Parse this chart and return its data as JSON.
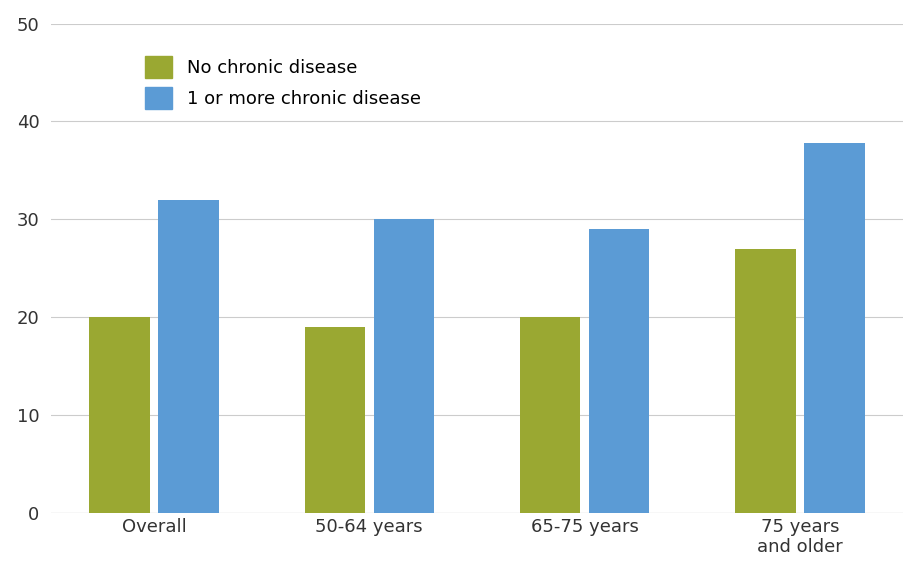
{
  "categories": [
    "Overall",
    "50-64 years",
    "65-75 years",
    "75 years\nand older"
  ],
  "no_disease": [
    20.0,
    19.0,
    20.0,
    27.0
  ],
  "one_or_more": [
    32.0,
    30.0,
    29.0,
    37.8
  ],
  "no_disease_color": "#9aA832",
  "one_or_more_color": "#5B9BD5",
  "legend_labels": [
    "No chronic disease",
    "1 or more chronic disease"
  ],
  "ylim": [
    0,
    50
  ],
  "yticks": [
    0,
    10,
    20,
    30,
    40,
    50
  ],
  "background_color": "#FFFFFF",
  "bar_width": 0.28,
  "bar_gap": 0.04
}
